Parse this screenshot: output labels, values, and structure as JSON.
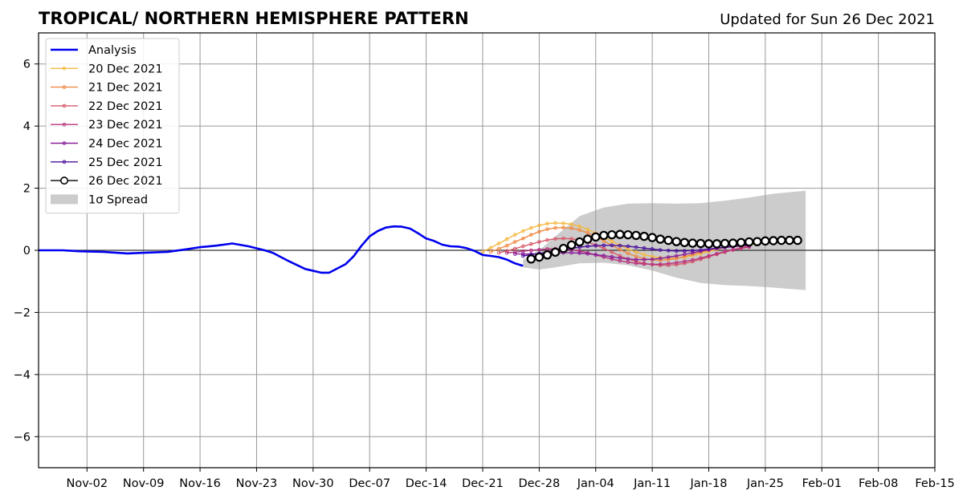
{
  "chart_data": {
    "type": "line",
    "title": "TROPICAL/ NORTHERN HEMISPHERE PATTERN",
    "subtitle": "Updated for Sun 26 Dec 2021",
    "xlabel": "",
    "ylabel": "",
    "x_axis_type": "date",
    "xlim": [
      "2021-10-27",
      "2022-02-15"
    ],
    "ylim": [
      -7,
      7
    ],
    "x_ticks": [
      {
        "date": "2021-11-02",
        "label": "Nov-02"
      },
      {
        "date": "2021-11-09",
        "label": "Nov-09"
      },
      {
        "date": "2021-11-16",
        "label": "Nov-16"
      },
      {
        "date": "2021-11-23",
        "label": "Nov-23"
      },
      {
        "date": "2021-11-30",
        "label": "Nov-30"
      },
      {
        "date": "2021-12-07",
        "label": "Dec-07"
      },
      {
        "date": "2021-12-14",
        "label": "Dec-14"
      },
      {
        "date": "2021-12-21",
        "label": "Dec-21"
      },
      {
        "date": "2021-12-28",
        "label": "Dec-28"
      },
      {
        "date": "2022-01-04",
        "label": "Jan-04"
      },
      {
        "date": "2022-01-11",
        "label": "Jan-11"
      },
      {
        "date": "2022-01-18",
        "label": "Jan-18"
      },
      {
        "date": "2022-01-25",
        "label": "Jan-25"
      },
      {
        "date": "2022-02-01",
        "label": "Feb-01"
      },
      {
        "date": "2022-02-08",
        "label": "Feb-08"
      },
      {
        "date": "2022-02-15",
        "label": "Feb-15"
      }
    ],
    "y_ticks": [
      {
        "value": 6,
        "label": "6"
      },
      {
        "value": 4,
        "label": "4"
      },
      {
        "value": 2,
        "label": "2"
      },
      {
        "value": 0,
        "label": "0"
      },
      {
        "value": -2,
        "label": "−2"
      },
      {
        "value": -4,
        "label": "−4"
      },
      {
        "value": -6,
        "label": "−6"
      }
    ],
    "grid": true,
    "legend_position": "top-left",
    "analysis": {
      "name": "Analysis",
      "color": "#0000ee",
      "points": [
        [
          "2021-10-27",
          0.0
        ],
        [
          "2021-10-30",
          0.0
        ],
        [
          "2021-11-01",
          -0.03
        ],
        [
          "2021-11-04",
          -0.05
        ],
        [
          "2021-11-07",
          -0.1
        ],
        [
          "2021-11-09",
          -0.08
        ],
        [
          "2021-11-12",
          -0.05
        ],
        [
          "2021-11-14",
          0.02
        ],
        [
          "2021-11-16",
          0.1
        ],
        [
          "2021-11-18",
          0.15
        ],
        [
          "2021-11-20",
          0.22
        ],
        [
          "2021-11-22",
          0.13
        ],
        [
          "2021-11-24",
          0.0
        ],
        [
          "2021-11-25",
          -0.08
        ],
        [
          "2021-11-27",
          -0.35
        ],
        [
          "2021-11-29",
          -0.6
        ],
        [
          "2021-12-01",
          -0.72
        ],
        [
          "2021-12-02",
          -0.72
        ],
        [
          "2021-12-04",
          -0.45
        ],
        [
          "2021-12-05",
          -0.2
        ],
        [
          "2021-12-06",
          0.15
        ],
        [
          "2021-12-07",
          0.45
        ],
        [
          "2021-12-08",
          0.62
        ],
        [
          "2021-12-09",
          0.73
        ],
        [
          "2021-12-10",
          0.77
        ],
        [
          "2021-12-11",
          0.76
        ],
        [
          "2021-12-12",
          0.7
        ],
        [
          "2021-12-13",
          0.55
        ],
        [
          "2021-12-14",
          0.38
        ],
        [
          "2021-12-15",
          0.3
        ],
        [
          "2021-12-16",
          0.18
        ],
        [
          "2021-12-17",
          0.13
        ],
        [
          "2021-12-18",
          0.12
        ],
        [
          "2021-12-19",
          0.07
        ],
        [
          "2021-12-20",
          -0.02
        ],
        [
          "2021-12-21",
          -0.15
        ],
        [
          "2021-12-22",
          -0.18
        ],
        [
          "2021-12-23",
          -0.22
        ],
        [
          "2021-12-24",
          -0.3
        ],
        [
          "2021-12-25",
          -0.42
        ],
        [
          "2021-12-26",
          -0.5
        ]
      ]
    },
    "spread": {
      "name": "1σ Spread",
      "color": "#cccccc",
      "upper": [
        [
          "2021-12-26",
          -0.3
        ],
        [
          "2021-12-28",
          0.0
        ],
        [
          "2021-12-30",
          0.45
        ],
        [
          "2022-01-02",
          1.1
        ],
        [
          "2022-01-05",
          1.38
        ],
        [
          "2022-01-08",
          1.5
        ],
        [
          "2022-01-11",
          1.52
        ],
        [
          "2022-01-14",
          1.5
        ],
        [
          "2022-01-17",
          1.52
        ],
        [
          "2022-01-20",
          1.6
        ],
        [
          "2022-01-23",
          1.7
        ],
        [
          "2022-01-26",
          1.82
        ],
        [
          "2022-01-30",
          1.92
        ]
      ],
      "lower": [
        [
          "2021-12-26",
          -0.55
        ],
        [
          "2021-12-28",
          -0.62
        ],
        [
          "2021-12-30",
          -0.55
        ],
        [
          "2022-01-02",
          -0.42
        ],
        [
          "2022-01-05",
          -0.4
        ],
        [
          "2022-01-08",
          -0.48
        ],
        [
          "2022-01-11",
          -0.65
        ],
        [
          "2022-01-14",
          -0.88
        ],
        [
          "2022-01-17",
          -1.05
        ],
        [
          "2022-01-20",
          -1.12
        ],
        [
          "2022-01-23",
          -1.15
        ],
        [
          "2022-01-26",
          -1.2
        ],
        [
          "2022-01-30",
          -1.28
        ]
      ]
    },
    "forecasts": [
      {
        "name": "20 Dec 2021",
        "color": "#f5b942",
        "start": "2021-12-21",
        "step_days": 1,
        "values": [
          -0.05,
          0.08,
          0.22,
          0.36,
          0.5,
          0.62,
          0.72,
          0.8,
          0.86,
          0.88,
          0.87,
          0.84,
          0.77,
          0.67,
          0.55,
          0.42,
          0.29,
          0.16,
          0.04,
          -0.06,
          -0.14,
          -0.2,
          -0.24,
          -0.26,
          -0.25,
          -0.22,
          -0.17,
          -0.11,
          -0.04,
          0.03,
          0.09,
          0.14,
          0.17,
          0.19,
          0.2
        ]
      },
      {
        "name": "21 Dec 2021",
        "color": "#ef8a44",
        "start": "2021-12-22",
        "step_days": 1,
        "values": [
          -0.05,
          0.05,
          0.15,
          0.27,
          0.38,
          0.5,
          0.6,
          0.68,
          0.72,
          0.73,
          0.71,
          0.65,
          0.56,
          0.44,
          0.3,
          0.16,
          0.02,
          -0.1,
          -0.2,
          -0.27,
          -0.31,
          -0.32,
          -0.3,
          -0.26,
          -0.2,
          -0.13,
          -0.06,
          0.0,
          0.05,
          0.09,
          0.12,
          0.13,
          0.13
        ]
      },
      {
        "name": "22 Dec 2021",
        "color": "#d9596a",
        "start": "2021-12-23",
        "step_days": 1,
        "values": [
          -0.08,
          -0.02,
          0.05,
          0.13,
          0.2,
          0.27,
          0.33,
          0.37,
          0.38,
          0.37,
          0.33,
          0.26,
          0.17,
          0.06,
          -0.06,
          -0.18,
          -0.28,
          -0.36,
          -0.42,
          -0.46,
          -0.48,
          -0.48,
          -0.46,
          -0.42,
          -0.36,
          -0.29,
          -0.21,
          -0.13,
          -0.06,
          0.01,
          0.06,
          0.1
        ]
      },
      {
        "name": "23 Dec 2021",
        "color": "#b7357f",
        "start": "2021-12-24",
        "step_days": 1,
        "values": [
          -0.08,
          -0.06,
          -0.03,
          0.0,
          0.02,
          0.04,
          0.05,
          0.04,
          0.02,
          -0.02,
          -0.08,
          -0.15,
          -0.22,
          -0.28,
          -0.34,
          -0.38,
          -0.42,
          -0.44,
          -0.45,
          -0.45,
          -0.43,
          -0.4,
          -0.36,
          -0.31,
          -0.25,
          -0.18,
          -0.11,
          -0.04,
          0.02,
          0.07,
          0.12
        ]
      },
      {
        "name": "24 Dec 2021",
        "color": "#8a1f9a",
        "start": "2021-12-25",
        "step_days": 1,
        "values": [
          -0.12,
          -0.12,
          -0.12,
          -0.11,
          -0.1,
          -0.09,
          -0.08,
          -0.08,
          -0.09,
          -0.11,
          -0.14,
          -0.17,
          -0.21,
          -0.25,
          -0.28,
          -0.3,
          -0.3,
          -0.29,
          -0.26,
          -0.22,
          -0.18,
          -0.13,
          -0.08,
          -0.03,
          0.02,
          0.06,
          0.09,
          0.12,
          0.14,
          0.15
        ]
      },
      {
        "name": "25 Dec 2021",
        "color": "#4b109e",
        "start": "2021-12-26",
        "step_days": 1,
        "values": [
          -0.18,
          -0.14,
          -0.1,
          -0.06,
          -0.02,
          0.02,
          0.06,
          0.1,
          0.13,
          0.15,
          0.16,
          0.16,
          0.15,
          0.13,
          0.1,
          0.07,
          0.04,
          0.01,
          -0.01,
          -0.02,
          -0.02,
          -0.01,
          0.01,
          0.04,
          0.07,
          0.1,
          0.13,
          0.16,
          0.18
        ]
      },
      {
        "name": "26 Dec 2021",
        "color": "#000000",
        "start": "2021-12-27",
        "step_days": 1,
        "marker": "open-circle",
        "values": [
          -0.28,
          -0.22,
          -0.15,
          -0.06,
          0.06,
          0.17,
          0.27,
          0.36,
          0.43,
          0.48,
          0.5,
          0.51,
          0.5,
          0.48,
          0.45,
          0.41,
          0.36,
          0.32,
          0.28,
          0.25,
          0.23,
          0.22,
          0.21,
          0.21,
          0.22,
          0.23,
          0.25,
          0.27,
          0.28,
          0.3,
          0.31,
          0.32,
          0.32,
          0.32
        ]
      }
    ]
  }
}
